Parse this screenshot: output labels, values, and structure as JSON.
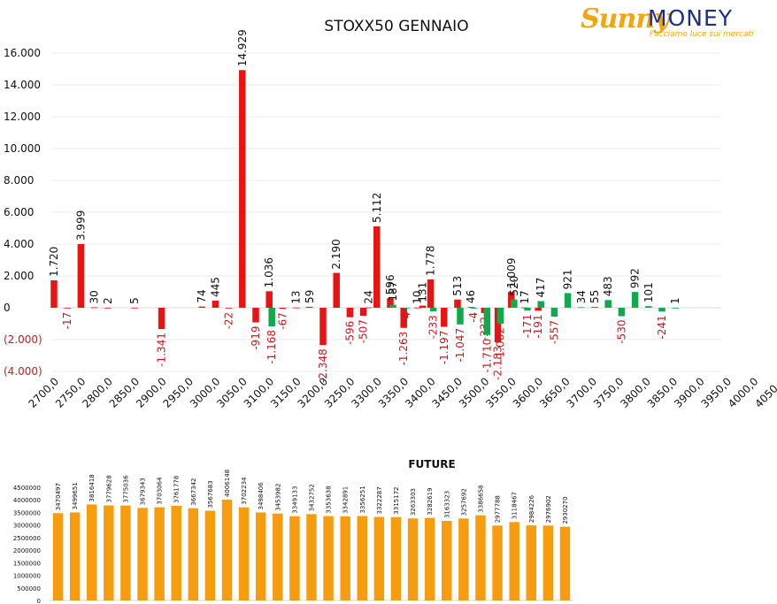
{
  "logo": {
    "brand_left": "Sunny",
    "brand_right": "MONEY",
    "tagline": "Facciamo luce sui mercati",
    "colors": {
      "sunny": "#f2a60d",
      "money": "#1f2f86"
    }
  },
  "chart_data": [
    {
      "type": "bar",
      "title": "STOXX50 GENNAIO",
      "xlabel": "",
      "ylabel": "",
      "ylim": [
        -4000,
        16000
      ],
      "yticks": [
        16000,
        14000,
        12000,
        10000,
        8000,
        6000,
        4000,
        2000,
        0,
        -2000,
        -4000
      ],
      "ytick_labels": [
        "16.000",
        "14.000",
        "12.000",
        "10.000",
        "8.000",
        "6.000",
        "4.000",
        "2.000",
        "0",
        "(2.000)",
        "(4.000)"
      ],
      "x_tick_labels": [
        "2700,0",
        "2750,0",
        "2800,0",
        "2850,0",
        "2900,0",
        "2950,0",
        "3000,0",
        "3050,0",
        "3100,0",
        "3150,0",
        "3200,0",
        "3250,0",
        "3300,0",
        "3350,0",
        "3400,0",
        "3450,0",
        "3500,0",
        "3550,0",
        "3600,0",
        "3650,0",
        "3700,0",
        "3750,0",
        "3800,0",
        "3850,0",
        "3900,0",
        "3950,0",
        "4000,0",
        "4050,0"
      ],
      "grid": true,
      "legend": "none",
      "series": [
        {
          "color": "#e81414",
          "points": [
            {
              "x": 2700,
              "value": 1720,
              "label": "1.720"
            },
            {
              "x": 2725,
              "value": -17,
              "label": "-17"
            },
            {
              "x": 2750,
              "value": 3999,
              "label": "3.999"
            },
            {
              "x": 2775,
              "value": 30,
              "label": "30"
            },
            {
              "x": 2800,
              "value": 2,
              "label": "2"
            },
            {
              "x": 2850,
              "value": 5,
              "label": "5"
            },
            {
              "x": 2900,
              "value": -1341,
              "label": "-1.341"
            },
            {
              "x": 2975,
              "value": 74,
              "label": "74"
            },
            {
              "x": 3000,
              "value": 445,
              "label": "445"
            },
            {
              "x": 3025,
              "value": -22,
              "label": "-22"
            },
            {
              "x": 3050,
              "value": 14929,
              "label": "14.929"
            },
            {
              "x": 3075,
              "value": -919,
              "label": "-919"
            },
            {
              "x": 3100,
              "value": 1036,
              "label": "1.036"
            },
            {
              "x": 3125,
              "value": -67,
              "label": "-67"
            },
            {
              "x": 3150,
              "value": 13,
              "label": "13"
            },
            {
              "x": 3175,
              "value": 59,
              "label": "59"
            },
            {
              "x": 3200,
              "value": -2348,
              "label": "-2.348"
            },
            {
              "x": 3225,
              "value": 2190,
              "label": "2.190"
            },
            {
              "x": 3250,
              "value": -596,
              "label": "-596"
            },
            {
              "x": 3275,
              "value": -507,
              "label": "-507"
            },
            {
              "x": 3285,
              "value": 24,
              "label": "24"
            },
            {
              "x": 3300,
              "value": 5112,
              "label": "5.112"
            },
            {
              "x": 3325,
              "value": 596,
              "label": "596"
            },
            {
              "x": 3350,
              "value": -1263,
              "label": "-1.263"
            },
            {
              "x": 3375,
              "value": 10,
              "label": "10"
            },
            {
              "x": 3385,
              "value": 131,
              "label": "131"
            },
            {
              "x": 3400,
              "value": 1778,
              "label": "1.778"
            },
            {
              "x": 3425,
              "value": -1197,
              "label": "-1.197"
            },
            {
              "x": 3450,
              "value": 513,
              "label": "513"
            },
            {
              "x": 3475,
              "value": 46,
              "label": "46"
            },
            {
              "x": 3500,
              "value": -332,
              "label": "-332"
            },
            {
              "x": 3525,
              "value": -2183,
              "label": "-2.183"
            },
            {
              "x": 3550,
              "value": 1009,
              "label": "1.009"
            },
            {
              "x": 3575,
              "value": 17,
              "label": "17"
            },
            {
              "x": 3600,
              "value": -191,
              "label": "-191"
            }
          ]
        },
        {
          "color": "#12a84d",
          "points": [
            {
              "x": 3100,
              "value": -1168,
              "label": "-1.168"
            },
            {
              "x": 3325,
              "value": 187,
              "label": "187"
            },
            {
              "x": 3350,
              "value": -4,
              "label": "-4"
            },
            {
              "x": 3400,
              "value": -233,
              "label": "-233"
            },
            {
              "x": 3450,
              "value": -1047,
              "label": "-1.047"
            },
            {
              "x": 3475,
              "value": -4,
              "label": "-4"
            },
            {
              "x": 3500,
              "value": -1710,
              "label": "-1.710"
            },
            {
              "x": 3525,
              "value": -1002,
              "label": "-1.002"
            },
            {
              "x": 3550,
              "value": 520,
              "label": "520"
            },
            {
              "x": 3575,
              "value": -171,
              "label": "-171"
            },
            {
              "x": 3600,
              "value": 417,
              "label": "417"
            },
            {
              "x": 3625,
              "value": -557,
              "label": "-557"
            },
            {
              "x": 3650,
              "value": 921,
              "label": "921"
            },
            {
              "x": 3675,
              "value": 34,
              "label": "34"
            },
            {
              "x": 3700,
              "value": 55,
              "label": "55"
            },
            {
              "x": 3725,
              "value": 483,
              "label": "483"
            },
            {
              "x": 3750,
              "value": -530,
              "label": "-530"
            },
            {
              "x": 3775,
              "value": 992,
              "label": "992"
            },
            {
              "x": 3800,
              "value": 101,
              "label": "101"
            },
            {
              "x": 3825,
              "value": -241,
              "label": "-241"
            },
            {
              "x": 3850,
              "value": 1,
              "label": "1"
            }
          ]
        }
      ]
    },
    {
      "type": "bar",
      "title": "FUTURE",
      "xlabel": "",
      "ylabel": "",
      "ylim": [
        0,
        4500000
      ],
      "yticks": [
        0,
        500000,
        1000000,
        1500000,
        2000000,
        2500000,
        3000000,
        3500000,
        4000000,
        4500000
      ],
      "ytick_labels": [
        "0",
        "500000",
        "1000000",
        "1500000",
        "2000000",
        "2500000",
        "3000000",
        "3500000",
        "4000000",
        "4500000"
      ],
      "grid": false,
      "legend": "none",
      "color": "#f59d0e",
      "values": [
        3470497,
        3499651,
        3816418,
        3779628,
        3775036,
        3679343,
        3703064,
        3761778,
        3667342,
        3567683,
        4006148,
        3702234,
        3498406,
        3453982,
        3349133,
        3432752,
        3353638,
        3342891,
        3356251,
        3322287,
        3315172,
        3263303,
        3282619,
        3163323,
        3257692,
        3386658,
        2977788,
        3118467,
        2984226,
        2976902,
        2930270
      ]
    }
  ]
}
